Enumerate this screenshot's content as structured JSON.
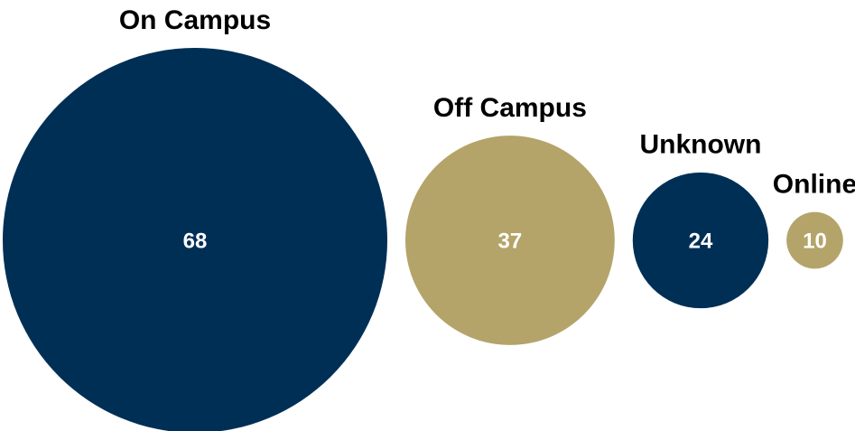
{
  "chart_data": {
    "type": "bubble",
    "categories": [
      "On Campus",
      "Off Campus",
      "Unknown",
      "Online"
    ],
    "values": [
      68,
      37,
      24,
      10
    ],
    "colors": [
      "#002f56",
      "#b4a46a",
      "#002f56",
      "#b4a46a"
    ]
  }
}
